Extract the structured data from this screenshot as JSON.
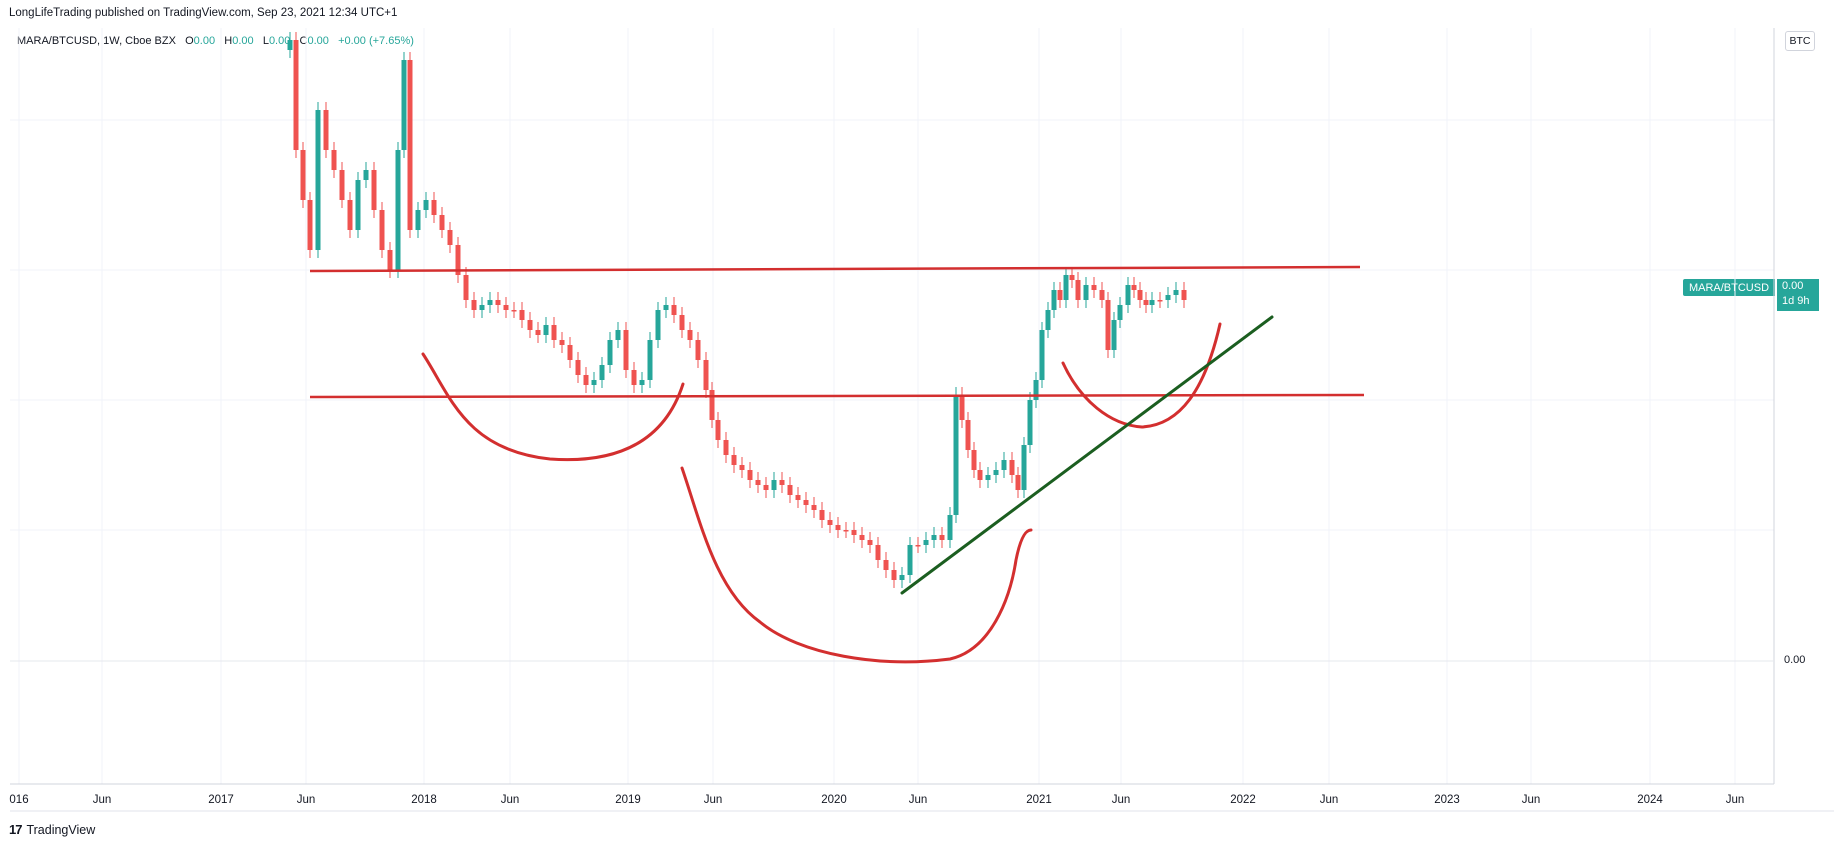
{
  "header": {
    "publisher_line": "LongLifeTrading published on TradingView.com, Sep 23, 2021 12:34 UTC+1"
  },
  "legend": {
    "symbol": "MARA/BTCUSD, 1W, Cboe BZX",
    "open_label": "O",
    "open_value": "0.00",
    "high_label": "H",
    "high_value": "0.00",
    "low_label": "L",
    "low_value": "0.00",
    "close_label": "C",
    "close_value": "0.00",
    "change": "+0.00 (+7.65%)"
  },
  "price_axis": {
    "currency": "BTC",
    "zero_label": "0.00",
    "last_price_symbol": "MARA/BTCUSD",
    "last_price_value": "0.00",
    "countdown": "1d 9h"
  },
  "time_axis": {
    "ticks": [
      "016",
      "Jun",
      "2017",
      "Jun",
      "2018",
      "Jun",
      "2019",
      "Jun",
      "2020",
      "Jun",
      "2021",
      "Jun",
      "2022",
      "Jun",
      "2023",
      "Jun",
      "2024",
      "Jun"
    ]
  },
  "footer": {
    "brand": "TradingView",
    "logo": "17"
  },
  "colors": {
    "up": "#26a69a",
    "down": "#ef5350",
    "drawing_red": "#d32f2f",
    "drawing_green": "#1b5e20",
    "grid": "#f0f3fa"
  },
  "chart_data": {
    "type": "candlestick",
    "title": "MARA/BTCUSD, 1W, Cboe BZX",
    "xlabel": "",
    "ylabel": "",
    "interval": "1W",
    "x_range": [
      "2016",
      "2024-09"
    ],
    "price_scale_label": "BTC",
    "visible_price_label": "0.00",
    "last_change_pct": 7.65,
    "grid": true,
    "trend": [
      {
        "date": "2017-05",
        "level": "high"
      },
      {
        "date": "2017-06",
        "level": "upper-resistance"
      },
      {
        "date": "2018-06",
        "level": "between-lines"
      },
      {
        "date": "2019-03",
        "level": "between-lines"
      },
      {
        "date": "2019-05",
        "level": "lower-support"
      },
      {
        "date": "2020-04",
        "level": "low"
      },
      {
        "date": "2020-08",
        "level": "lower-support"
      },
      {
        "date": "2021-02",
        "level": "upper-resistance"
      },
      {
        "date": "2021-09",
        "level": "near-upper-resistance"
      }
    ]
  }
}
